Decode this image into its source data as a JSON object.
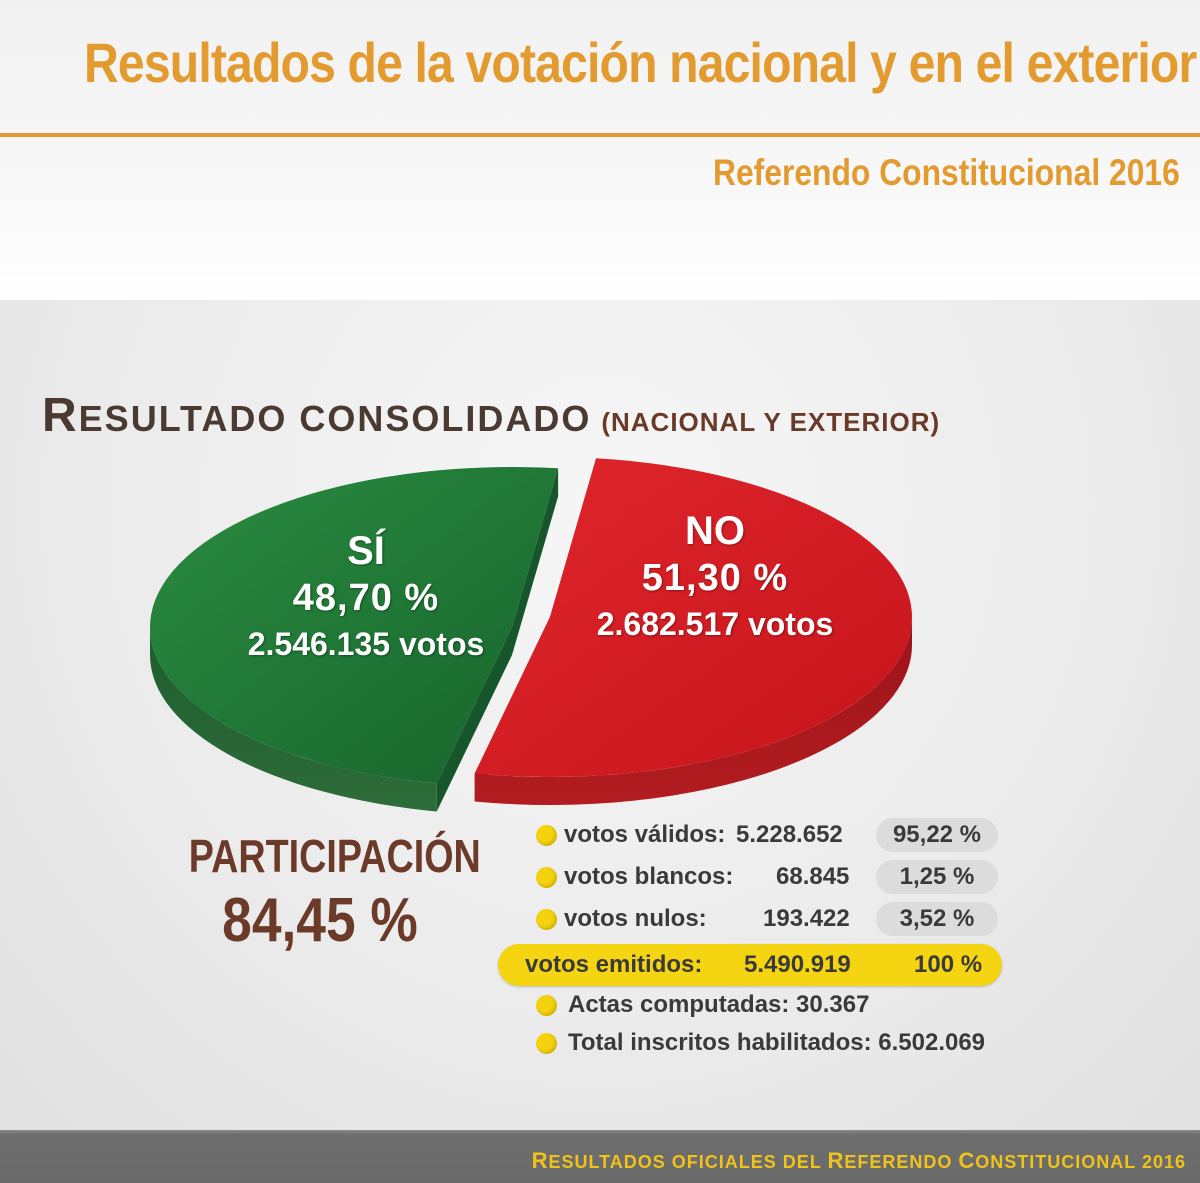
{
  "header": {
    "title": "Resultados de la votación nacional y en el exterior",
    "subtitle": "Referendo Constitucional 2016"
  },
  "section": {
    "title_first_letter": "R",
    "title_rest": "esultado consolidado",
    "title_paren": "(nacional y exterior)"
  },
  "colors": {
    "accent": "#e39a2e",
    "si": "#1e7a34",
    "no": "#d81a22",
    "highlight": "#f5d412",
    "dark_brown": "#4a3a32"
  },
  "chart_data": {
    "type": "pie",
    "slices": [
      {
        "name": "SÍ",
        "percent": 48.7,
        "percent_label": "48,70 %",
        "votes_label": "2.546.135 votos",
        "color": "#1e7a34"
      },
      {
        "name": "NO",
        "percent": 51.3,
        "percent_label": "51,30 %",
        "votes_label": "2.682.517 votos",
        "color": "#d81a22"
      }
    ],
    "exploded": true,
    "perspective": "3d"
  },
  "participation": {
    "label": "PARTICIPACIÓN",
    "value": "84,45 %"
  },
  "stats": {
    "validos": {
      "label": "votos válidos:",
      "value": "5.228.652",
      "pct": "95,22 %"
    },
    "blancos": {
      "label": "votos blancos:",
      "value": "68.845",
      "pct": "1,25 %"
    },
    "nulos": {
      "label": "votos nulos:",
      "value": "193.422",
      "pct": "3,52 %"
    },
    "emitidos": {
      "label": "votos emitidos:",
      "value": "5.490.919",
      "pct": "100 %"
    },
    "actas": {
      "label": "Actas computadas: 30.367"
    },
    "inscritos": {
      "label": "Total inscritos habilitados: 6.502.069"
    }
  },
  "footer": {
    "r1": "R",
    "t1": "esultados oficiales del ",
    "r2": "R",
    "t2": "eferendo ",
    "r3": "C",
    "t3": "onstitucional 2016"
  }
}
